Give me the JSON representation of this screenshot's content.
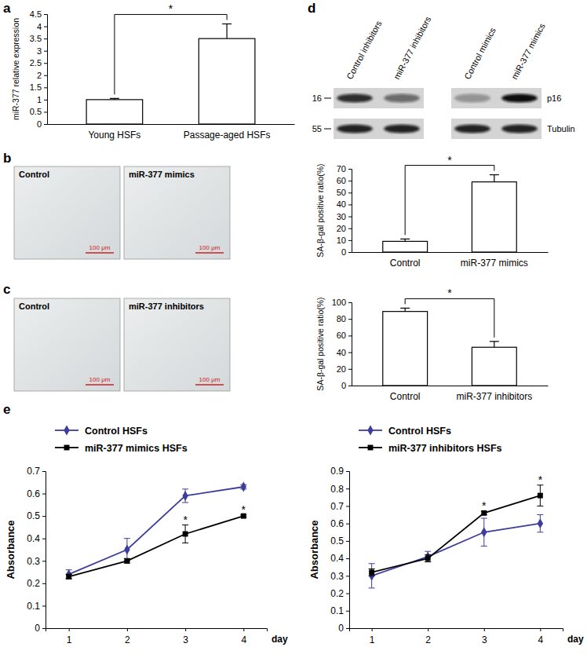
{
  "panel_labels": [
    "a",
    "b",
    "c",
    "d",
    "e"
  ],
  "chart_data": [
    {
      "type": "bar",
      "y_label": "miR-377 relative expression",
      "categories": [
        "Young HSFs",
        "Passage-aged HSFs"
      ],
      "values": [
        1,
        3.5
      ],
      "errors": [
        0.05,
        0.6
      ],
      "color": "#ffffff",
      "ylim": [
        0,
        4.5
      ],
      "yticks": [
        0,
        0.5,
        1,
        1.5,
        2,
        2.5,
        3,
        3.5,
        4,
        4.5
      ],
      "grid": false,
      "annotations": [
        {
          "text": "*"
        }
      ]
    },
    {
      "type": "bar",
      "y_label": "SA-β-gal positive ratio(%)",
      "categories": [
        "Control",
        "miR-377 mimics"
      ],
      "values": [
        9,
        59
      ],
      "errors": [
        2,
        6
      ],
      "color": "#ffffff",
      "ylim": [
        0,
        70
      ],
      "yticks": [
        0,
        10,
        20,
        30,
        40,
        50,
        60,
        70
      ],
      "grid": false,
      "annotations": [
        {
          "text": "*"
        }
      ]
    },
    {
      "type": "bar",
      "y_label": "SA-β-gal positive ratio(%)",
      "categories": [
        "Control",
        "miR-377 inhibitors"
      ],
      "values": [
        89,
        46
      ],
      "errors": [
        4,
        7
      ],
      "color": "#ffffff",
      "ylim": [
        0,
        100
      ],
      "yticks": [
        0,
        20,
        40,
        60,
        80,
        100
      ],
      "grid": false,
      "annotations": [
        {
          "text": "*"
        }
      ]
    },
    {
      "type": "line",
      "x_label": "day",
      "y_label": "Absorbance",
      "x": [
        1,
        2,
        3,
        4
      ],
      "xlim": [
        0.6,
        4.4
      ],
      "xticks": [
        1,
        2,
        3,
        4
      ],
      "ylim": [
        0,
        0.7
      ],
      "yticks": [
        0,
        0.1,
        0.2,
        0.3,
        0.4,
        0.5,
        0.6,
        0.7
      ],
      "grid": false,
      "legend": "top-left",
      "series": [
        {
          "name": "Control HSFs",
          "color": "#3d3d9c",
          "marker": "diamond",
          "values": [
            0.24,
            0.35,
            0.59,
            0.63
          ],
          "errors": [
            0.02,
            0.05,
            0.03,
            0.01
          ]
        },
        {
          "name": "miR-377 mimics HSFs",
          "color": "#000000",
          "marker": "square",
          "values": [
            0.23,
            0.3,
            0.42,
            0.5
          ],
          "errors": [
            0.01,
            0.01,
            0.04,
            0.005
          ]
        }
      ],
      "annotations": [
        {
          "text": "*",
          "series": 1,
          "index": 2
        },
        {
          "text": "*",
          "series": 1,
          "index": 3
        }
      ]
    },
    {
      "type": "line",
      "x_label": "day",
      "y_label": "Absorbance",
      "x": [
        1,
        2,
        3,
        4
      ],
      "xlim": [
        0.6,
        4.4
      ],
      "xticks": [
        1,
        2,
        3,
        4
      ],
      "ylim": [
        0,
        0.9
      ],
      "yticks": [
        0,
        0.1,
        0.2,
        0.3,
        0.4,
        0.5,
        0.6,
        0.7,
        0.8,
        0.9
      ],
      "grid": false,
      "legend": "top-left",
      "series": [
        {
          "name": "Control HSFs",
          "color": "#3d3d9c",
          "marker": "diamond",
          "values": [
            0.3,
            0.41,
            0.55,
            0.6
          ],
          "errors": [
            0.07,
            0.03,
            0.08,
            0.05
          ]
        },
        {
          "name": "miR-377 inhibitors HSFs",
          "color": "#000000",
          "marker": "square",
          "values": [
            0.32,
            0.4,
            0.66,
            0.76
          ],
          "errors": [
            0.02,
            0.02,
            0.01,
            0.06
          ]
        }
      ],
      "annotations": [
        {
          "text": "*",
          "series": 1,
          "index": 2
        },
        {
          "text": "*",
          "series": 1,
          "index": 3
        }
      ]
    }
  ],
  "micrographs": [
    {
      "label": "Control",
      "scale_bar": "100 μm"
    },
    {
      "label": "miR-377 mimics",
      "scale_bar": "100 μm"
    },
    {
      "label": "Control",
      "scale_bar": "100 μm"
    },
    {
      "label": "miR-377 inhibitors",
      "scale_bar": "100 μm"
    }
  ],
  "blot": {
    "lanes": [
      "Control inhibitors",
      "miR-377 inhibitors",
      "Control mimics",
      "miR-377 mimics"
    ],
    "rows": [
      {
        "name": "p16",
        "marker_label": "16",
        "intensity": [
          0.85,
          0.55,
          0.35,
          1
        ]
      },
      {
        "name": "Tubulin",
        "marker_label": "55",
        "intensity": [
          0.9,
          0.9,
          0.9,
          0.9
        ]
      }
    ]
  }
}
